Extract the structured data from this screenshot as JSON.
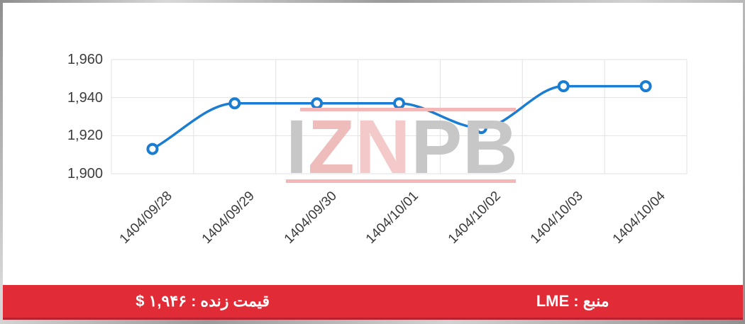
{
  "chart_data": {
    "type": "line",
    "categories": [
      "1404/09/28",
      "1404/09/29",
      "1404/09/30",
      "1404/10/01",
      "1404/10/02",
      "1404/10/03",
      "1404/10/04"
    ],
    "values": [
      1913,
      1937,
      1937,
      1937,
      1924,
      1946,
      1946
    ],
    "title": "",
    "xlabel": "",
    "ylabel": "",
    "ylim": [
      1900,
      1960
    ],
    "yticks": [
      1900,
      1920,
      1940,
      1960
    ],
    "ytick_labels": [
      "1,900",
      "1,920",
      "1,940",
      "1,960"
    ],
    "x_label_rotation": -45,
    "grid": true,
    "grid_color": "#e2e2e2",
    "line_color": "#1a7dd2",
    "marker_style": "open-circle",
    "marker_fill": "#ffffff",
    "legend": "none"
  },
  "watermark": {
    "text": "IZNPB",
    "letters": [
      {
        "char": "I",
        "color": "#c7c7c7"
      },
      {
        "char": "Z",
        "color": "#efbcbc"
      },
      {
        "char": "N",
        "color": "#f3c9c9"
      },
      {
        "char": "P",
        "color": "#c7c7c7"
      },
      {
        "char": "B",
        "color": "#c7c7c7"
      }
    ],
    "accent_line_color": "#f3b7b7"
  },
  "footer": {
    "background": "#e12b36",
    "live_price_label": "قیمت زنده : ۱,۹۴۶ $",
    "source_label": "منبع : LME"
  }
}
